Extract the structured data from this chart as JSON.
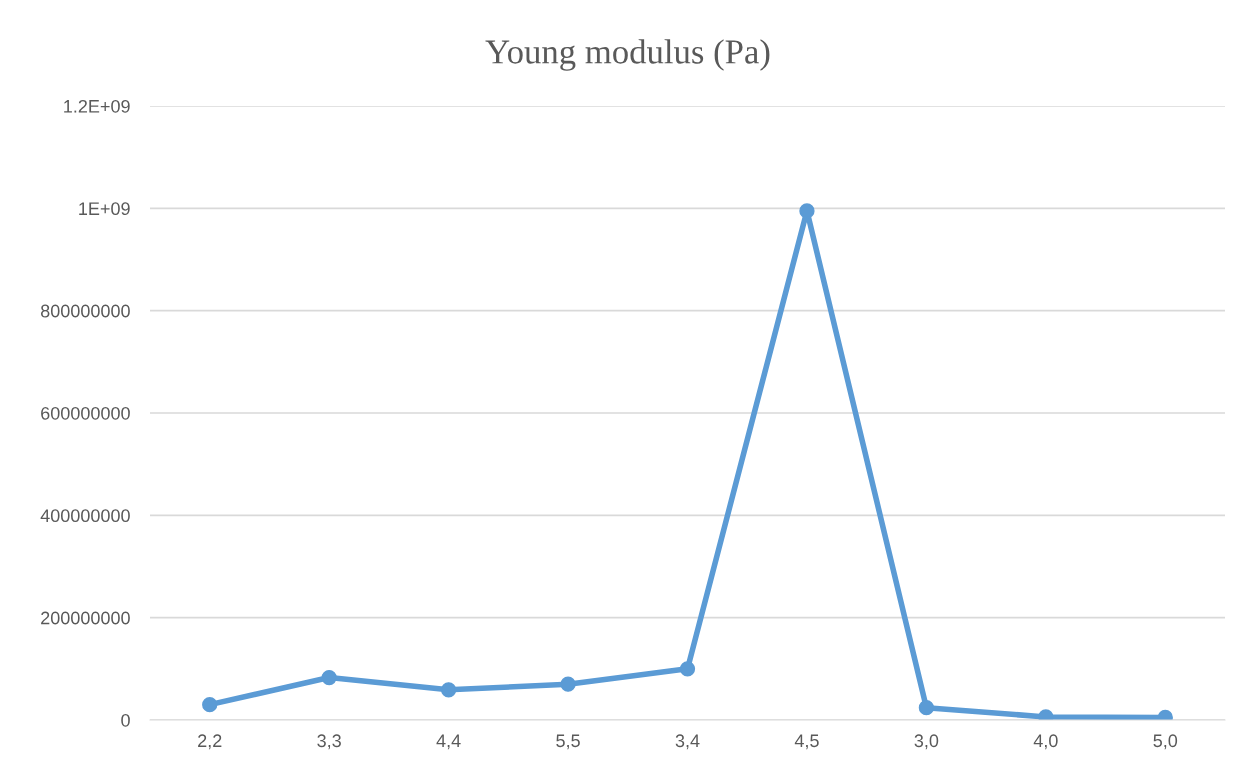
{
  "chart_data": {
    "type": "line",
    "title": "Young modulus (Pa)",
    "categories": [
      "2,2",
      "3,3",
      "4,4",
      "5,5",
      "3,4",
      "4,5",
      "3,0",
      "4,0",
      "5,0"
    ],
    "series": [
      {
        "color": "#5b9bd5",
        "values": [
          30000000,
          83000000,
          59000000,
          70000000,
          100000000,
          995000000,
          24000000,
          6000000,
          5000000
        ]
      }
    ],
    "ylim": [
      0,
      1200000000
    ],
    "yticks": [
      0,
      {
        "value": 200000000,
        "label": "200000000"
      },
      {
        "value": 400000000,
        "label": "400000000"
      },
      {
        "value": 600000000,
        "label": "600000000"
      },
      {
        "value": 800000000,
        "label": "800000000"
      },
      {
        "value": 1000000000,
        "label": "1E+09"
      },
      {
        "value": 1200000000,
        "label": "1.2E+09"
      }
    ],
    "grid": "y",
    "marker": "circle",
    "line_style": "solid",
    "legend": false
  }
}
